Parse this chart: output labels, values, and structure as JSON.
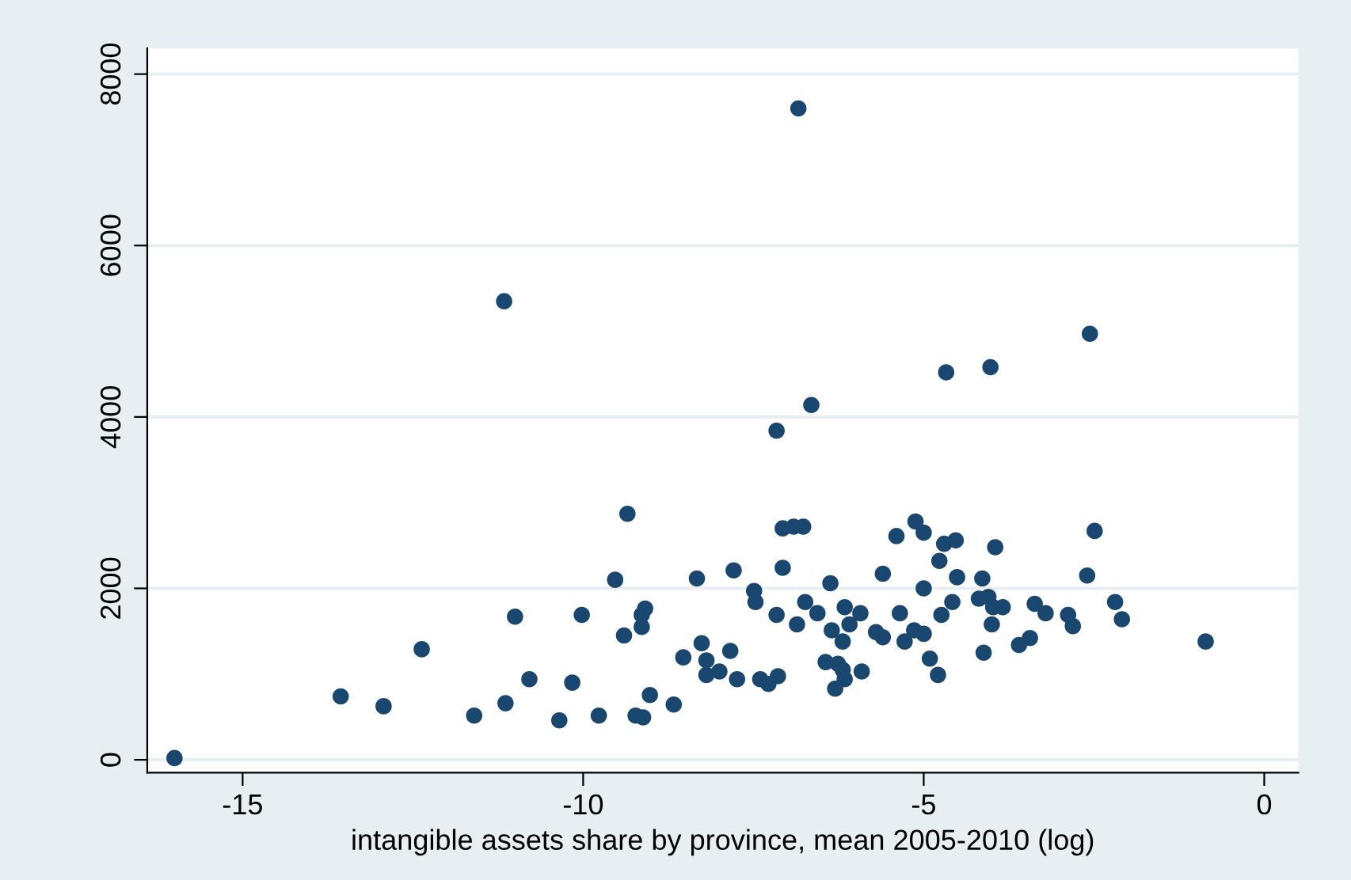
{
  "chart_data": {
    "type": "scatter",
    "xlabel": "intangible assets share by province, mean 2005-2010 (log)",
    "xlim": [
      -16.4,
      0.5
    ],
    "ylim": [
      -150,
      8300
    ],
    "xticks": [
      -15,
      -10,
      -5,
      0
    ],
    "yticks": [
      0,
      2000,
      4000,
      6000,
      8000
    ],
    "grid": "y",
    "marker": "circle",
    "series": [
      {
        "color": "#1a476f",
        "x": [
          -6.84,
          -16.0,
          -11.16,
          -13.56,
          -12.93,
          -12.37,
          -11.6,
          -11.14,
          -11.0,
          -10.79,
          -10.35,
          -10.16,
          -10.02,
          -9.77,
          -9.53,
          -9.35,
          -9.4,
          -9.14,
          -9.14,
          -9.09,
          -9.02,
          -9.23,
          -9.12,
          -8.67,
          -8.53,
          -8.33,
          -8.26,
          -8.19,
          -8.19,
          -8.0,
          -7.84,
          -7.79,
          -7.74,
          -7.49,
          -7.47,
          -7.4,
          -7.28,
          -7.14,
          -7.16,
          -7.16,
          -7.07,
          -6.91,
          -6.77,
          -7.07,
          -6.86,
          -6.74,
          -6.65,
          -6.56,
          -6.37,
          -6.44,
          -6.35,
          -6.26,
          -6.19,
          -6.19,
          -6.16,
          -6.3,
          -6.16,
          -6.09,
          -5.93,
          -5.91,
          -5.7,
          -5.6,
          -5.6,
          -5.4,
          -5.35,
          -5.28,
          -5.12,
          -5.14,
          -5.0,
          -5.0,
          -5.0,
          -4.91,
          -4.79,
          -4.74,
          -4.67,
          -4.7,
          -4.53,
          -4.77,
          -4.58,
          -4.51,
          -4.14,
          -4.19,
          -4.05,
          -3.95,
          -4.02,
          -4.0,
          -3.98,
          -3.84,
          -4.12,
          -3.6,
          -3.44,
          -3.37,
          -3.21,
          -2.88,
          -2.81,
          -2.6,
          -2.56,
          -2.49,
          -2.19,
          -2.09,
          -0.86
        ],
        "values": [
          7600,
          20,
          5350,
          740,
          625,
          1290,
          515,
          660,
          1670,
          940,
          460,
          900,
          1690,
          515,
          2100,
          2870,
          1450,
          1550,
          1690,
          1765,
          755,
          515,
          495,
          645,
          1195,
          2115,
          1360,
          1160,
          990,
          1030,
          1270,
          2210,
          940,
          1970,
          1840,
          940,
          885,
          975,
          1690,
          3840,
          2700,
          2720,
          2720,
          2240,
          1580,
          1840,
          4140,
          1710,
          2060,
          1140,
          1510,
          1120,
          1380,
          1050,
          940,
          830,
          1780,
          1580,
          1710,
          1030,
          1490,
          1430,
          2170,
          2610,
          1710,
          1380,
          2780,
          1510,
          2650,
          1470,
          2000,
          1180,
          990,
          1690,
          4520,
          2520,
          2560,
          2320,
          1840,
          2130,
          2115,
          1880,
          1900,
          2480,
          4580,
          1580,
          1780,
          1780,
          1250,
          1340,
          1420,
          1820,
          1710,
          1690,
          1560,
          2150,
          4970,
          2670,
          1840,
          1640,
          1380
        ]
      }
    ]
  }
}
